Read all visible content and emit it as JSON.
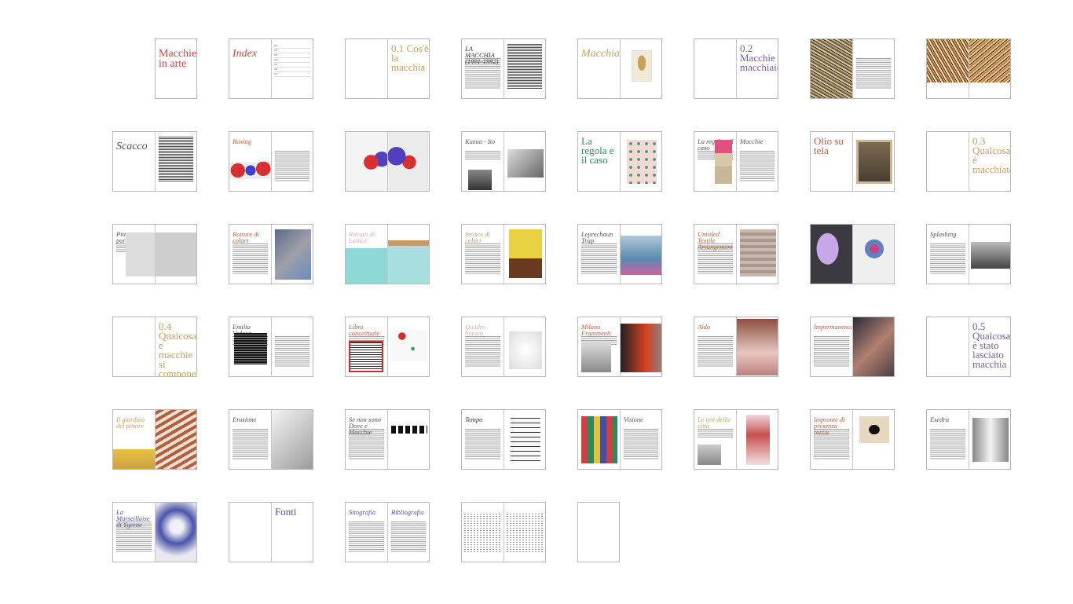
{
  "spreads": [
    [
      {
        "type": "cover",
        "title": "Macchie in arte"
      }
    ],
    [
      {
        "type": "title",
        "title": "Index",
        "color": "#d2453d"
      },
      {
        "type": "index",
        "items": [
          "0.1",
          "0.2",
          "0.3",
          "0.4",
          "0.5",
          "0.6",
          "0.7"
        ]
      }
    ],
    [
      {
        "type": "blank"
      },
      {
        "type": "section",
        "num": "0.1",
        "title": "Cos'è la macchia",
        "color": "#c9a05a"
      }
    ],
    [
      {
        "type": "text",
        "title": "LA MACCHIA (1991-1992)",
        "color": "#333"
      },
      {
        "type": "textdense"
      }
    ],
    [
      {
        "type": "title",
        "title": "Macchia",
        "color": "#c9a05a"
      },
      {
        "type": "image",
        "img": "gold"
      }
    ],
    [
      {
        "type": "blank"
      },
      {
        "type": "section",
        "num": "0.2",
        "title": "Macchie e macchiaioli",
        "color": "#7b5ca3"
      }
    ],
    [
      {
        "type": "image",
        "img": "pollock"
      },
      {
        "type": "text",
        "title": "",
        "color": "#333"
      }
    ],
    [
      {
        "type": "image",
        "img": "pollock2"
      },
      {
        "type": "image",
        "img": "pollock3"
      }
    ],
    [
      {
        "type": "title",
        "title": "Scacco",
        "color": "#555"
      },
      {
        "type": "textdense"
      }
    ],
    [
      {
        "type": "imgbot",
        "title": "Boxing",
        "color": "#c9583a",
        "img": "redblue"
      },
      {
        "type": "text",
        "title": "",
        "color": "#333"
      }
    ],
    [
      {
        "type": "image",
        "img": "wall"
      },
      {
        "type": "image",
        "img": "wall2"
      }
    ],
    [
      {
        "type": "imgtxt",
        "title": "Kazuo - Ito",
        "color": "#555",
        "img": "bw"
      },
      {
        "type": "image",
        "img": "bw2"
      }
    ],
    [
      {
        "type": "section",
        "num": "",
        "title": "La regola e il caso",
        "color": "#2a8a5c"
      },
      {
        "type": "image",
        "img": "green"
      }
    ],
    [
      {
        "type": "imgtxt",
        "title": "La regola e il caso",
        "color": "#555",
        "img": "flowers"
      },
      {
        "type": "text",
        "title": "Macchie",
        "color": "#555"
      }
    ],
    [
      {
        "type": "section",
        "num": "",
        "title": "Olio su tela",
        "color": "#c9583a"
      },
      {
        "type": "image",
        "img": "olio"
      }
    ],
    [
      {
        "type": "blank"
      },
      {
        "type": "section",
        "num": "0.3",
        "title": "Qualcosa è macchiato",
        "color": "#c9a05a"
      }
    ],
    [
      {
        "type": "imgtxt",
        "title": "Pittura su porta",
        "color": "#555",
        "img": "gray"
      },
      {
        "type": "image",
        "img": "gray2"
      }
    ],
    [
      {
        "type": "text",
        "title": "Rotture di colori",
        "color": "#c9583a"
      },
      {
        "type": "image",
        "img": "aerial"
      }
    ],
    [
      {
        "type": "imgbot",
        "title": "Ritratti di Lattice",
        "color": "#e0b0b0",
        "img": "aqua"
      },
      {
        "type": "image",
        "img": "aqua2"
      }
    ],
    [
      {
        "type": "text",
        "title": "Strisce di colori",
        "color": "#c9a05a"
      },
      {
        "type": "image",
        "img": "yellow"
      }
    ],
    [
      {
        "type": "text",
        "title": "Leprechaun Trap",
        "color": "#555"
      },
      {
        "type": "image",
        "img": "sofa"
      }
    ],
    [
      {
        "type": "text",
        "title": "Untitled Textile Arrangement",
        "color": "#c9583a"
      },
      {
        "type": "image",
        "img": "textile"
      }
    ],
    [
      {
        "type": "image",
        "img": "purple"
      },
      {
        "type": "image",
        "img": "splash"
      }
    ],
    [
      {
        "type": "text",
        "title": "Splashing",
        "color": "#555"
      },
      {
        "type": "image",
        "img": "smoke"
      }
    ],
    [
      {
        "type": "blank"
      },
      {
        "type": "section",
        "num": "0.4",
        "title": "Qualcosa e macchie si compone",
        "color": "#c9a05a"
      }
    ],
    [
      {
        "type": "imgtxt",
        "title": "Emilio Vedova",
        "color": "#555",
        "img": "vedova"
      },
      {
        "type": "text",
        "title": "",
        "color": "#333"
      }
    ],
    [
      {
        "type": "imgtxt",
        "title": "Libro concettuale",
        "color": "#c9583a",
        "img": "book"
      },
      {
        "type": "image",
        "img": "redlines"
      }
    ],
    [
      {
        "type": "text",
        "title": "Quadro bianco",
        "color": "#e0b0b0"
      },
      {
        "type": "image",
        "img": "white"
      }
    ],
    [
      {
        "type": "imgtxt",
        "title": "Milano Frammenti",
        "color": "#c9583a",
        "img": "sculpt"
      },
      {
        "type": "image",
        "img": "figure"
      }
    ],
    [
      {
        "type": "text",
        "title": "Aldo",
        "color": "#c9583a"
      },
      {
        "type": "image",
        "img": "hair"
      }
    ],
    [
      {
        "type": "text",
        "title": "Impermanence",
        "color": "#c9583a"
      },
      {
        "type": "image",
        "img": "face"
      }
    ],
    [
      {
        "type": "blank"
      },
      {
        "type": "section",
        "num": "0.5",
        "title": "Qualcosa è stato lasciato macchia",
        "color": "#7b5ca3"
      }
    ],
    [
      {
        "type": "imgbot",
        "title": "Il giardino del pittore",
        "color": "#c9a05a",
        "img": "garden"
      },
      {
        "type": "image",
        "img": "stripes"
      }
    ],
    [
      {
        "type": "text",
        "title": "Erosione",
        "color": "#555"
      },
      {
        "type": "image",
        "img": "white3d"
      }
    ],
    [
      {
        "type": "text",
        "title": "Se non sono Dove e Macchie",
        "color": "#555"
      },
      {
        "type": "image",
        "img": "dots"
      }
    ],
    [
      {
        "type": "text",
        "title": "Tempo",
        "color": "#333"
      },
      {
        "type": "image",
        "img": "script"
      }
    ],
    [
      {
        "type": "image",
        "img": "letters"
      },
      {
        "type": "text",
        "title": "Visione",
        "color": "#555"
      }
    ],
    [
      {
        "type": "imgtxt",
        "title": "Le reti della città",
        "color": "#c9a05a",
        "img": "room"
      },
      {
        "type": "image",
        "img": "dress"
      }
    ],
    [
      {
        "type": "text",
        "title": "Impronte di presenza rocca",
        "color": "#c9583a"
      },
      {
        "type": "image",
        "img": "burst"
      }
    ],
    [
      {
        "type": "text",
        "title": "Esedra",
        "color": "#555"
      },
      {
        "type": "image",
        "img": "corridor"
      }
    ],
    [
      {
        "type": "text",
        "title": "La Marseillaise di Ygerne",
        "color": "#4a55a8"
      },
      {
        "type": "image",
        "img": "blue"
      }
    ],
    [
      {
        "type": "blank"
      },
      {
        "type": "section",
        "num": "",
        "title": "Fonti",
        "color": "#4a55a8"
      }
    ],
    [
      {
        "type": "text",
        "title": "Sitografia",
        "color": "#4a55a8"
      },
      {
        "type": "text",
        "title": "Bibliografia",
        "color": "#4a55a8"
      }
    ],
    [
      {
        "type": "table"
      },
      {
        "type": "table"
      }
    ],
    [
      {
        "type": "blank"
      }
    ]
  ]
}
